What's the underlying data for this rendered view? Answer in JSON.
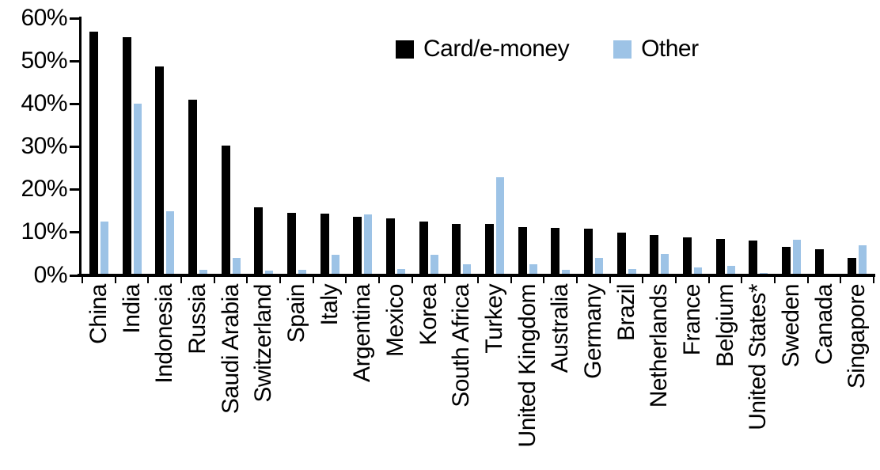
{
  "chart_data": {
    "type": "bar",
    "title": "",
    "xlabel": "",
    "ylabel": "",
    "ylim": [
      0,
      60
    ],
    "y_ticks": [
      "0%",
      "10%",
      "20%",
      "30%",
      "40%",
      "50%",
      "60%"
    ],
    "grid": false,
    "legend_position": "top-center",
    "background_color": "#ffffff",
    "categories": [
      "China",
      "India",
      "Indonesia",
      "Russia",
      "Saudi Arabia",
      "Switzerland",
      "Spain",
      "Italy",
      "Argentina",
      "Mexico",
      "Korea",
      "South Africa",
      "Turkey",
      "United Kingdom",
      "Australia",
      "Germany",
      "Brazil",
      "Netherlands",
      "France",
      "Belgium",
      "United States*",
      "Sweden",
      "Canada",
      "Singapore"
    ],
    "series": [
      {
        "name": "Card/e-money",
        "color": "#000000",
        "values": [
          56.5,
          55.2,
          48.4,
          40.7,
          30.0,
          15.6,
          14.2,
          14.0,
          13.3,
          12.9,
          12.2,
          11.7,
          11.6,
          11.0,
          10.8,
          10.5,
          9.7,
          9.0,
          8.5,
          8.2,
          7.8,
          6.4,
          5.8,
          3.8
        ]
      },
      {
        "name": "Other",
        "color": "#9DC3E6",
        "values": [
          12.3,
          39.8,
          14.6,
          0.9,
          3.8,
          0.8,
          0.9,
          4.4,
          13.8,
          1.2,
          4.5,
          2.3,
          22.5,
          2.3,
          0.9,
          3.8,
          1.1,
          4.7,
          1.5,
          1.9,
          0.2,
          8.0,
          0.0,
          6.6
        ]
      }
    ]
  }
}
